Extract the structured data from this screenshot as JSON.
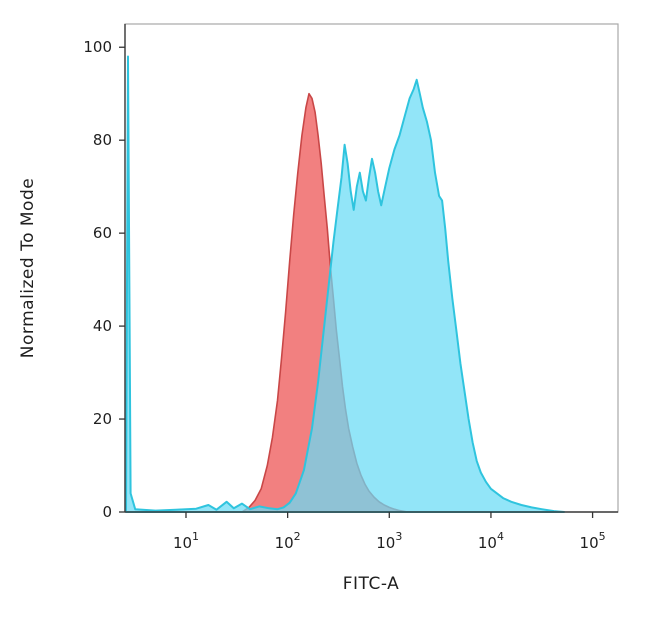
{
  "figure": {
    "background": "#ffffff"
  },
  "chart_data": {
    "type": "area",
    "chart_kind": "flow-cytometry-histogram-overlay",
    "title": "",
    "xlabel": "FITC-A",
    "ylabel": "Normalized To Mode",
    "x_scale": "log10",
    "x_domain_log10": [
      0.4,
      5.25
    ],
    "y_domain": [
      0,
      105
    ],
    "grid": false,
    "legend": null,
    "x_ticks": [
      {
        "log10": 1,
        "base": "10",
        "exp": "1"
      },
      {
        "log10": 2,
        "base": "10",
        "exp": "2"
      },
      {
        "log10": 3,
        "base": "10",
        "exp": "3"
      },
      {
        "log10": 4,
        "base": "10",
        "exp": "4"
      },
      {
        "log10": 5,
        "base": "10",
        "exp": "5"
      }
    ],
    "y_ticks": [
      0,
      20,
      40,
      60,
      80,
      100
    ],
    "series": [
      {
        "name": "red-population",
        "fill": "rgba(237,85,85,0.75)",
        "stroke": "#c94747",
        "stroke_width": 1.6,
        "points_log10x_y": [
          [
            1.55,
            0
          ],
          [
            1.62,
            1
          ],
          [
            1.68,
            2.5
          ],
          [
            1.74,
            5
          ],
          [
            1.8,
            10
          ],
          [
            1.85,
            16
          ],
          [
            1.9,
            24
          ],
          [
            1.94,
            33
          ],
          [
            1.98,
            43
          ],
          [
            2.02,
            54
          ],
          [
            2.06,
            64
          ],
          [
            2.1,
            73
          ],
          [
            2.14,
            81
          ],
          [
            2.18,
            87
          ],
          [
            2.21,
            90
          ],
          [
            2.24,
            89
          ],
          [
            2.27,
            86
          ],
          [
            2.3,
            81
          ],
          [
            2.33,
            75
          ],
          [
            2.36,
            68
          ],
          [
            2.39,
            61
          ],
          [
            2.42,
            53
          ],
          [
            2.45,
            46
          ],
          [
            2.48,
            39
          ],
          [
            2.51,
            33
          ],
          [
            2.54,
            27
          ],
          [
            2.57,
            22
          ],
          [
            2.6,
            18
          ],
          [
            2.64,
            14
          ],
          [
            2.68,
            10.5
          ],
          [
            2.72,
            8
          ],
          [
            2.76,
            6
          ],
          [
            2.8,
            4.5
          ],
          [
            2.85,
            3.2
          ],
          [
            2.9,
            2.2
          ],
          [
            2.95,
            1.5
          ],
          [
            3.0,
            1
          ],
          [
            3.05,
            0.6
          ],
          [
            3.1,
            0.3
          ],
          [
            3.18,
            0
          ]
        ]
      },
      {
        "name": "cyan-population",
        "fill": "rgba(104,219,245,0.72)",
        "stroke": "#2fc4de",
        "stroke_width": 2,
        "points_log10x_y": [
          [
            0.41,
            0
          ],
          [
            0.43,
            98
          ],
          [
            0.455,
            4
          ],
          [
            0.5,
            0.6
          ],
          [
            0.7,
            0.3
          ],
          [
            0.9,
            0.5
          ],
          [
            1.1,
            0.7
          ],
          [
            1.22,
            1.5
          ],
          [
            1.3,
            0.5
          ],
          [
            1.4,
            2.2
          ],
          [
            1.47,
            0.8
          ],
          [
            1.55,
            1.8
          ],
          [
            1.63,
            0.6
          ],
          [
            1.72,
            1.2
          ],
          [
            1.82,
            0.8
          ],
          [
            1.9,
            0.6
          ],
          [
            1.96,
            1
          ],
          [
            2.02,
            2
          ],
          [
            2.08,
            4
          ],
          [
            2.16,
            9
          ],
          [
            2.24,
            18
          ],
          [
            2.3,
            28
          ],
          [
            2.36,
            40
          ],
          [
            2.41,
            50
          ],
          [
            2.45,
            58
          ],
          [
            2.49,
            65
          ],
          [
            2.53,
            72
          ],
          [
            2.56,
            79
          ],
          [
            2.59,
            75
          ],
          [
            2.62,
            69
          ],
          [
            2.65,
            65
          ],
          [
            2.68,
            70
          ],
          [
            2.71,
            73
          ],
          [
            2.74,
            69
          ],
          [
            2.77,
            67
          ],
          [
            2.8,
            72
          ],
          [
            2.83,
            76
          ],
          [
            2.86,
            73
          ],
          [
            2.89,
            69
          ],
          [
            2.92,
            66
          ],
          [
            2.96,
            70
          ],
          [
            3.0,
            74
          ],
          [
            3.05,
            78
          ],
          [
            3.1,
            81
          ],
          [
            3.15,
            85
          ],
          [
            3.2,
            89
          ],
          [
            3.24,
            91
          ],
          [
            3.27,
            93
          ],
          [
            3.3,
            90
          ],
          [
            3.33,
            87
          ],
          [
            3.37,
            84
          ],
          [
            3.41,
            80
          ],
          [
            3.45,
            73
          ],
          [
            3.49,
            68
          ],
          [
            3.52,
            67
          ],
          [
            3.55,
            61
          ],
          [
            3.58,
            54
          ],
          [
            3.62,
            46
          ],
          [
            3.66,
            39
          ],
          [
            3.7,
            32
          ],
          [
            3.74,
            26
          ],
          [
            3.78,
            20
          ],
          [
            3.82,
            15
          ],
          [
            3.86,
            11
          ],
          [
            3.9,
            8.5
          ],
          [
            3.95,
            6.5
          ],
          [
            4.0,
            5
          ],
          [
            4.06,
            4
          ],
          [
            4.12,
            3
          ],
          [
            4.2,
            2.2
          ],
          [
            4.3,
            1.5
          ],
          [
            4.4,
            1
          ],
          [
            4.5,
            0.6
          ],
          [
            4.62,
            0.2
          ],
          [
            4.72,
            0
          ]
        ]
      }
    ]
  }
}
